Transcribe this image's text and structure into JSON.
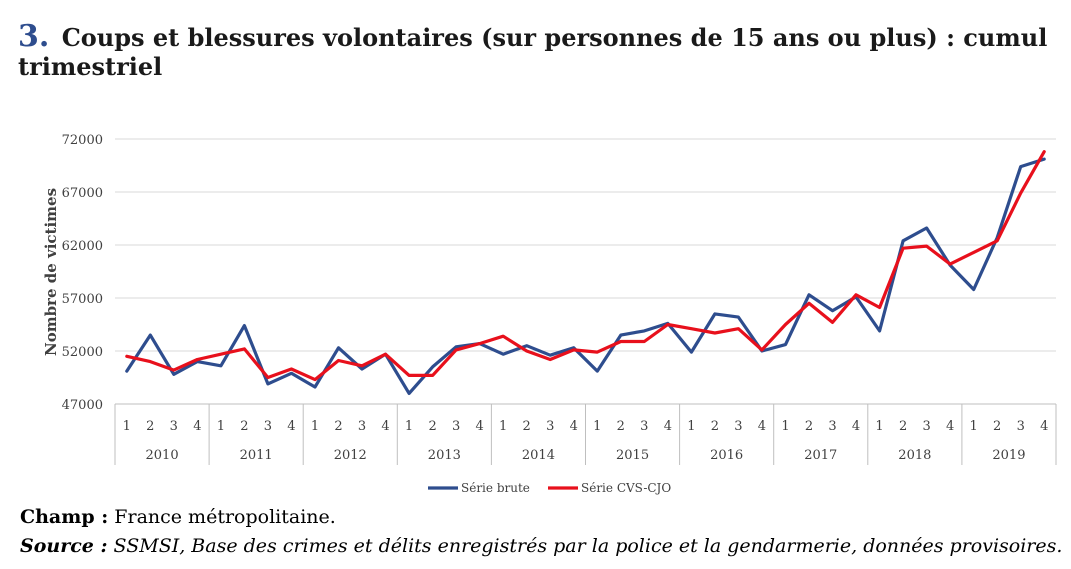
{
  "title": {
    "number": "3.",
    "text": "Coups et blessures volontaires (sur personnes de 15 ans ou plus) : cumul trimestriel"
  },
  "footer": {
    "champ_label": "Champ :",
    "champ_text": " France métropolitaine.",
    "source_label": "Source :",
    "source_text": " SSMSI, Base des crimes et délits enregistrés par la police et la gendarmerie, données provisoires."
  },
  "chart_data": {
    "type": "line",
    "ylabel": "Nombre de victimes",
    "ylim": [
      47000,
      72000
    ],
    "yticks": [
      "72000",
      "67000",
      "62000",
      "57000",
      "52000",
      "47000"
    ],
    "quarters": [
      "1",
      "2",
      "3",
      "4"
    ],
    "years": [
      "2010",
      "2011",
      "2012",
      "2013",
      "2014",
      "2015",
      "2016",
      "2017",
      "2018",
      "2019"
    ],
    "grid": true,
    "legend_position": "bottom",
    "series": [
      {
        "name": "Série brute",
        "color": "#2e4d8e",
        "values": [
          50100,
          53500,
          49800,
          51000,
          50600,
          54400,
          48900,
          49900,
          48600,
          52300,
          50300,
          51700,
          48000,
          50500,
          52400,
          52700,
          51700,
          52500,
          51600,
          52300,
          50100,
          53500,
          53900,
          54600,
          51900,
          55500,
          55200,
          52000,
          52600,
          57300,
          55800,
          57100,
          53900,
          62400,
          63600,
          60100,
          57800,
          62700,
          69400,
          70100
        ]
      },
      {
        "name": "Série CVS-CJO",
        "color": "#e8101c",
        "values": [
          51500,
          51000,
          50200,
          51200,
          51700,
          52200,
          49500,
          50300,
          49300,
          51100,
          50600,
          51700,
          49700,
          49700,
          52100,
          52700,
          53400,
          52000,
          51200,
          52100,
          51900,
          52900,
          52900,
          54500,
          54100,
          53700,
          54100,
          52100,
          54500,
          56500,
          54700,
          57300,
          56100,
          61700,
          61900,
          60200,
          61300,
          62400,
          66900,
          70800
        ]
      }
    ]
  }
}
